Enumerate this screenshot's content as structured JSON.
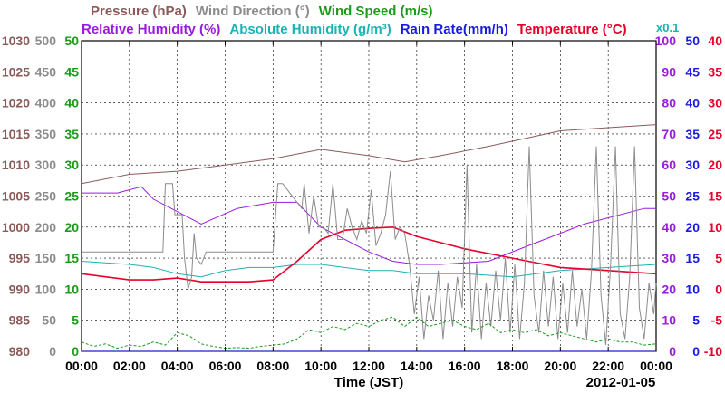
{
  "chart_data": {
    "type": "line",
    "title_row1": [
      {
        "text": "Pressure (hPa)",
        "color": "#8b5a5a"
      },
      {
        "text": "Wind Direction (°)",
        "color": "#8c8c8c"
      },
      {
        "text": "Wind Speed (m/s)",
        "color": "#1a9a1a"
      }
    ],
    "title_row2": [
      {
        "text": "Relative Humidity (%)",
        "color": "#9a1ae0"
      },
      {
        "text": "Absolute Humidity (g/m³)",
        "color": "#1ab3b3"
      },
      {
        "text": "Rain Rate(mm/h)",
        "color": "#1a1ae6"
      },
      {
        "text": "Temperature (°C)",
        "color": "#e6002a"
      }
    ],
    "rain_multiplier": "x0.1",
    "xlabel": "Time (JST)",
    "date_label": "2012-01-05",
    "x_ticks": [
      "00:00",
      "02:00",
      "04:00",
      "06:00",
      "08:00",
      "10:00",
      "12:00",
      "14:00",
      "16:00",
      "18:00",
      "20:00",
      "22:00",
      "00:00"
    ],
    "x_range_hours": [
      0,
      24
    ],
    "grid": true,
    "axes": {
      "pressure": {
        "color": "#8b5a5a",
        "min": 980,
        "max": 1030,
        "ticks": [
          "980",
          "985",
          "990",
          "995",
          "1000",
          "1005",
          "1010",
          "1015",
          "1020",
          "1025",
          "1030"
        ]
      },
      "wind_dir": {
        "color": "#8c8c8c",
        "min": 0,
        "max": 500,
        "ticks": [
          "0",
          "50",
          "100",
          "150",
          "200",
          "250",
          "300",
          "350",
          "400",
          "450",
          "500"
        ]
      },
      "wind_speed": {
        "color": "#1a9a1a",
        "min": 0,
        "max": 50,
        "ticks": [
          "0",
          "5",
          "10",
          "15",
          "20",
          "25",
          "30",
          "35",
          "40",
          "45",
          "50"
        ]
      },
      "humidity": {
        "color": "#9a1ae0",
        "min": 0,
        "max": 100,
        "ticks": [
          "0",
          "10",
          "20",
          "30",
          "40",
          "50",
          "60",
          "70",
          "80",
          "90",
          "100"
        ]
      },
      "rain": {
        "color": "#1a1ae6",
        "min": 0,
        "max": 50,
        "ticks": [
          "0",
          "5",
          "10",
          "15",
          "20",
          "25",
          "30",
          "35",
          "40",
          "45",
          "50"
        ]
      },
      "temperature": {
        "color": "#e6002a",
        "min": -10,
        "max": 40,
        "ticks": [
          "-10",
          "-5",
          "0",
          "5",
          "10",
          "15",
          "20",
          "25",
          "30",
          "35",
          "40"
        ]
      }
    },
    "series": [
      {
        "name": "Pressure (hPa)",
        "axis": "pressure",
        "color": "#8b5a5a",
        "x": [
          0,
          2,
          4,
          6,
          8,
          10,
          12,
          13.5,
          15,
          17,
          20,
          22,
          24
        ],
        "y": [
          1007,
          1008.5,
          1009,
          1010,
          1011,
          1012.5,
          1011.5,
          1010.5,
          1011.5,
          1013,
          1015.5,
          1016,
          1016.5
        ]
      },
      {
        "name": "Relative Humidity (%)",
        "axis": "humidity",
        "color": "#9a1ae0",
        "x": [
          0,
          1.5,
          2.5,
          3,
          4,
          5,
          6.5,
          8,
          9,
          10,
          12,
          13,
          14,
          15,
          17,
          19,
          21,
          23.5,
          24
        ],
        "y": [
          51,
          51,
          53,
          49,
          45,
          41,
          46,
          48,
          48,
          40,
          32,
          29,
          28,
          28,
          29,
          35,
          41,
          46,
          46
        ]
      },
      {
        "name": "Absolute Humidity (g/m³)",
        "axis": "rain",
        "color": "#1ab3b3",
        "x": [
          0,
          2,
          3,
          4,
          5,
          6,
          7,
          8,
          9,
          10,
          12,
          13,
          14,
          16,
          18,
          20,
          22,
          24
        ],
        "y": [
          14.5,
          14,
          13.5,
          12.5,
          12,
          13,
          13.5,
          13.5,
          14,
          14,
          13,
          13,
          12.5,
          12.5,
          12,
          13,
          13.5,
          14
        ]
      },
      {
        "name": "Temperature (°C)",
        "axis": "temperature",
        "color": "#e6002a",
        "x": [
          0,
          2,
          3,
          4,
          5,
          6,
          7,
          8,
          9,
          10,
          11,
          12,
          13,
          14,
          16,
          18,
          20,
          22,
          24
        ],
        "y": [
          2.5,
          1.5,
          1.5,
          1.8,
          1.2,
          1.2,
          1.2,
          1.5,
          4.5,
          8,
          9.5,
          9.8,
          10,
          8.5,
          6.5,
          5,
          3.5,
          3,
          2.5
        ]
      },
      {
        "name": "Wind Direction (°)",
        "axis": "wind_dir",
        "color": "#8c8c8c",
        "x": [
          0,
          3.4,
          3.5,
          3.8,
          3.9,
          4.2,
          4.3,
          4.45,
          4.6,
          4.7,
          4.8,
          5,
          5.2,
          8,
          8.2,
          8.4,
          9.2,
          9.3,
          9.5,
          9.7,
          9.9,
          10.1,
          10.3,
          10.5,
          10.7,
          10.9,
          11.1,
          11.3,
          11.5,
          11.7,
          11.9,
          12.1,
          12.3,
          12.5,
          12.7,
          12.9,
          13.1,
          13.3,
          13.5,
          13.7,
          13.9,
          14.1,
          14.3,
          14.5,
          14.7,
          14.9,
          15.1,
          15.3,
          15.5,
          15.7,
          15.9,
          16.1,
          16.3,
          16.5,
          16.7,
          16.9,
          17.1,
          17.3,
          17.5,
          17.7,
          17.9,
          18.1,
          18.3,
          18.5,
          18.7,
          18.9,
          19.1,
          19.3,
          19.5,
          19.7,
          19.9,
          20.1,
          20.3,
          20.5,
          20.7,
          20.9,
          21.1,
          21.3,
          21.5,
          21.7,
          21.9,
          22.1,
          22.3,
          22.5,
          22.7,
          22.9,
          23.1,
          23.3,
          23.5,
          23.7,
          23.9,
          24
        ],
        "y": [
          160,
          160,
          270,
          270,
          220,
          220,
          150,
          100,
          120,
          190,
          150,
          140,
          160,
          160,
          270,
          270,
          230,
          270,
          190,
          250,
          200,
          200,
          190,
          270,
          180,
          180,
          230,
          200,
          180,
          210,
          190,
          260,
          170,
          190,
          220,
          290,
          180,
          200,
          190,
          140,
          60,
          120,
          20,
          90,
          50,
          130,
          20,
          110,
          40,
          120,
          70,
          300,
          30,
          140,
          20,
          110,
          40,
          130,
          50,
          150,
          30,
          140,
          20,
          110,
          330,
          90,
          30,
          130,
          40,
          120,
          20,
          110,
          30,
          130,
          40,
          100,
          20,
          130,
          330,
          90,
          10,
          140,
          330,
          60,
          20,
          120,
          330,
          70,
          20,
          110,
          60,
          110
        ]
      },
      {
        "name": "Wind Speed (m/s)",
        "axis": "wind_speed",
        "color": "#1a9a1a",
        "x": [
          0,
          0.5,
          1,
          1.5,
          2,
          2.5,
          3,
          3.5,
          4,
          4.5,
          5,
          5.5,
          6,
          6.5,
          7,
          7.5,
          8,
          8.5,
          9,
          9.5,
          10,
          10.5,
          11,
          11.5,
          12,
          12.5,
          13,
          13.5,
          14,
          14.5,
          15,
          15.5,
          16,
          16.5,
          17,
          17.5,
          18,
          18.5,
          19,
          19.5,
          20,
          20.5,
          21,
          21.5,
          22,
          22.5,
          23,
          23.5,
          24
        ],
        "y": [
          1.5,
          0.8,
          1.2,
          0.5,
          1.0,
          0.8,
          1.5,
          1.0,
          3.0,
          2.5,
          1.2,
          0.8,
          0.5,
          0.6,
          0.5,
          0.8,
          1.0,
          1.2,
          2.0,
          3.5,
          3.0,
          4.0,
          3.5,
          4.5,
          4.0,
          5.0,
          5.5,
          4.0,
          5.5,
          4.0,
          4.5,
          5.0,
          4.0,
          3.5,
          4.5,
          3.0,
          3.5,
          3.0,
          3.5,
          2.5,
          3.0,
          2.5,
          2.0,
          1.5,
          2.0,
          1.5,
          1.5,
          1.0,
          1.2
        ]
      },
      {
        "name": "Rain Rate(mm/h)",
        "axis": "rain",
        "color": "#1a1ae6",
        "x": [
          0,
          24
        ],
        "y": [
          0,
          0
        ]
      }
    ]
  }
}
